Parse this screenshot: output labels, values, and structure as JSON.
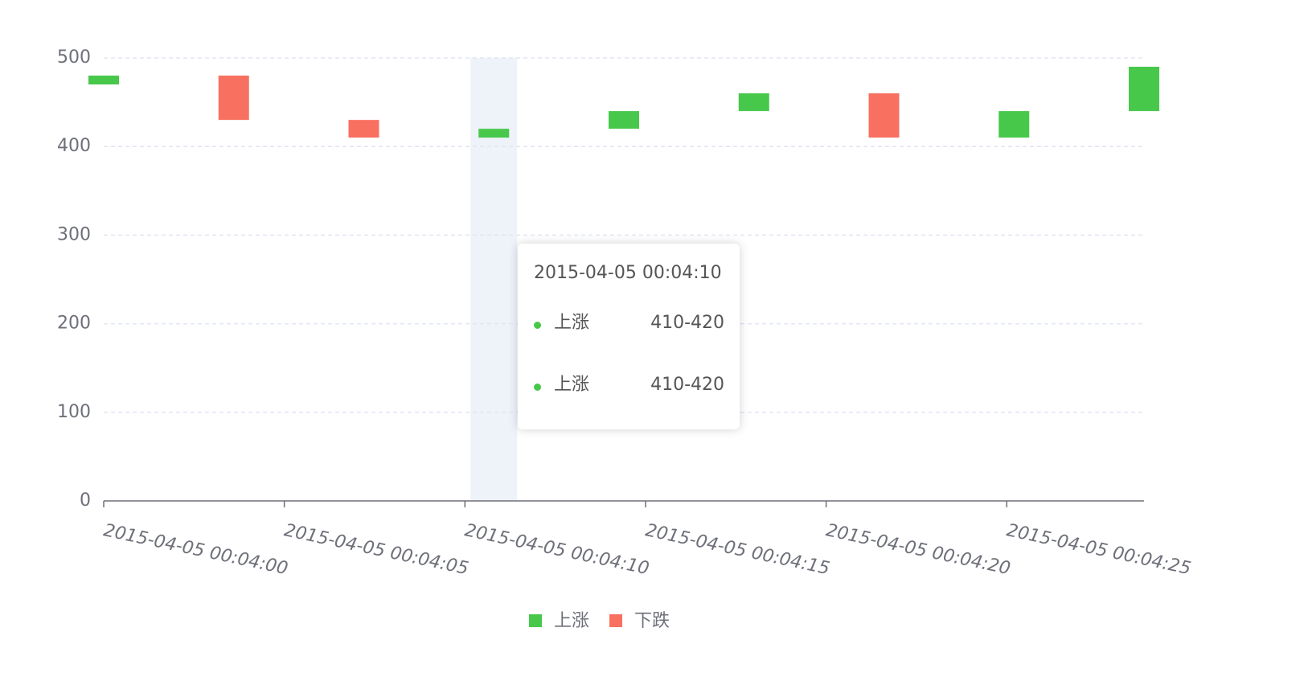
{
  "chart_data": {
    "type": "range-bar",
    "x": [
      0,
      3.6,
      7.2,
      10.8,
      14.4,
      18,
      21.6,
      25.2,
      28.8
    ],
    "series": [
      {
        "name": "上涨",
        "color": "#47c84b",
        "values": [
          [
            470,
            480
          ],
          null,
          null,
          [
            410,
            420
          ],
          [
            420,
            440
          ],
          [
            440,
            460
          ],
          null,
          [
            410,
            440
          ],
          [
            440,
            490
          ]
        ]
      },
      {
        "name": "下跌",
        "color": "#f87060",
        "values": [
          null,
          [
            430,
            480
          ],
          [
            410,
            430
          ],
          null,
          null,
          null,
          [
            410,
            460
          ],
          null,
          null
        ]
      }
    ],
    "xlim": [
      0,
      28.8
    ],
    "xticks": [
      {
        "value": 0,
        "label": "2015-04-05 00:04:00"
      },
      {
        "value": 5,
        "label": "2015-04-05 00:04:05"
      },
      {
        "value": 10,
        "label": "2015-04-05 00:04:10"
      },
      {
        "value": 15,
        "label": "2015-04-05 00:04:15"
      },
      {
        "value": 20,
        "label": "2015-04-05 00:04:20"
      },
      {
        "value": 25,
        "label": "2015-04-05 00:04:25"
      }
    ],
    "ylim": [
      0,
      500
    ],
    "yticks": [
      0,
      100,
      200,
      300,
      400,
      500
    ],
    "grid": true,
    "legend": "bottom",
    "tooltip": {
      "title": "2015-04-05 00:04:10",
      "items": [
        {
          "name": "上涨",
          "value": "410-420"
        },
        {
          "name": "上涨",
          "value": "410-420"
        }
      ]
    }
  }
}
